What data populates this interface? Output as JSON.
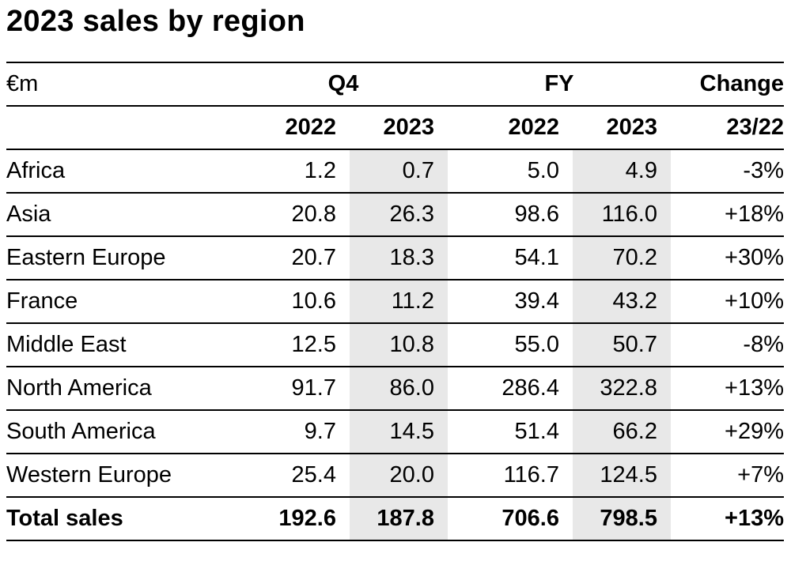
{
  "chart_data": {
    "type": "table",
    "title": "2023 sales by region",
    "unit_label": "€m",
    "group_headers": {
      "q4": "Q4",
      "fy": "FY",
      "change": "Change"
    },
    "columns": [
      "2022",
      "2023",
      "2022",
      "2023",
      "23/22"
    ],
    "rows": [
      {
        "region": "Africa",
        "values": [
          "1.2",
          "0.7",
          "5.0",
          "4.9",
          "-3%"
        ]
      },
      {
        "region": "Asia",
        "values": [
          "20.8",
          "26.3",
          "98.6",
          "116.0",
          "+18%"
        ]
      },
      {
        "region": "Eastern Europe",
        "values": [
          "20.7",
          "18.3",
          "54.1",
          "70.2",
          "+30%"
        ]
      },
      {
        "region": "France",
        "values": [
          "10.6",
          "11.2",
          "39.4",
          "43.2",
          "+10%"
        ]
      },
      {
        "region": "Middle East",
        "values": [
          "12.5",
          "10.8",
          "55.0",
          "50.7",
          "-8%"
        ]
      },
      {
        "region": "North America",
        "values": [
          "91.7",
          "86.0",
          "286.4",
          "322.8",
          "+13%"
        ]
      },
      {
        "region": "South America",
        "values": [
          "9.7",
          "14.5",
          "51.4",
          "66.2",
          "+29%"
        ]
      },
      {
        "region": "Western Europe",
        "values": [
          "25.4",
          "20.0",
          "116.7",
          "124.5",
          "+7%"
        ]
      }
    ],
    "total": {
      "region": "Total sales",
      "values": [
        "192.6",
        "187.8",
        "706.6",
        "798.5",
        "+13%"
      ]
    },
    "highlight_color": "#e8e8e8",
    "highlighted_columns": [
      "Q4 2023",
      "FY 2023"
    ]
  }
}
